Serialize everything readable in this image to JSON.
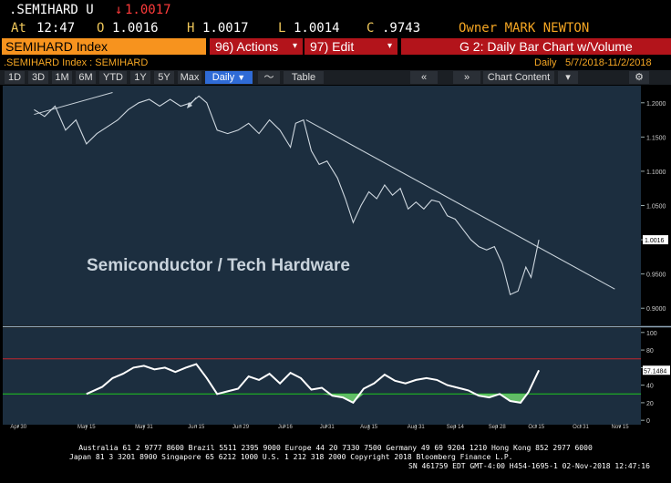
{
  "header": {
    "ticker": ".SEMIHARD U",
    "last_arrow": "↓",
    "last": "1.0017",
    "at_label": "At",
    "time": "12:47",
    "o_label": "O",
    "open": "1.0016",
    "h_label": "H",
    "high": "1.0017",
    "l_label": "L",
    "low": "1.0014",
    "c_label": "C",
    "close": ".9743",
    "owner": "Owner MARK NEWTON"
  },
  "menubar": {
    "security": "SEMIHARD Index",
    "actions": "96) Actions",
    "edit": "97) Edit",
    "chart_title": "G 2: Daily Bar Chart w/Volume"
  },
  "subheader": {
    "security_line": ".SEMIHARD Index : SEMIHARD",
    "period_label": "Daily",
    "date_range": "5/7/2018-11/2/2018"
  },
  "toolbar": {
    "ranges": [
      "1D",
      "3D",
      "1M",
      "6M",
      "YTD",
      "1Y",
      "5Y",
      "Max"
    ],
    "freq": "Daily",
    "table": "Table",
    "chart_content": "Chart Content",
    "colors": {
      "active": "#2f6bd6"
    }
  },
  "chart_data": {
    "type": "line",
    "annotation": "Semiconductor / Tech Hardware",
    "price_ylim": [
      0.875,
      1.225
    ],
    "price_ticks": [
      "1.2000",
      "1.1500",
      "1.1000",
      "1.0500",
      "1.0000",
      "0.9500",
      "0.9000"
    ],
    "price_tick_values": [
      1.2,
      1.15,
      1.1,
      1.05,
      1.0,
      0.95,
      0.9
    ],
    "last_price_label": "1.0016",
    "price_series": [
      {
        "x": 0,
        "y": 1.19
      },
      {
        "x": 4,
        "y": 1.18
      },
      {
        "x": 8,
        "y": 1.195
      },
      {
        "x": 12,
        "y": 1.16
      },
      {
        "x": 16,
        "y": 1.175
      },
      {
        "x": 20,
        "y": 1.14
      },
      {
        "x": 24,
        "y": 1.155
      },
      {
        "x": 28,
        "y": 1.165
      },
      {
        "x": 32,
        "y": 1.175
      },
      {
        "x": 36,
        "y": 1.19
      },
      {
        "x": 40,
        "y": 1.2
      },
      {
        "x": 44,
        "y": 1.205
      },
      {
        "x": 48,
        "y": 1.195
      },
      {
        "x": 52,
        "y": 1.205
      },
      {
        "x": 56,
        "y": 1.195
      },
      {
        "x": 60,
        "y": 1.2
      },
      {
        "x": 63,
        "y": 1.21
      },
      {
        "x": 66,
        "y": 1.2
      },
      {
        "x": 70,
        "y": 1.16
      },
      {
        "x": 74,
        "y": 1.155
      },
      {
        "x": 78,
        "y": 1.16
      },
      {
        "x": 82,
        "y": 1.17
      },
      {
        "x": 86,
        "y": 1.155
      },
      {
        "x": 90,
        "y": 1.175
      },
      {
        "x": 94,
        "y": 1.16
      },
      {
        "x": 98,
        "y": 1.135
      },
      {
        "x": 100,
        "y": 1.17
      },
      {
        "x": 103,
        "y": 1.175
      },
      {
        "x": 106,
        "y": 1.13
      },
      {
        "x": 109,
        "y": 1.11
      },
      {
        "x": 112,
        "y": 1.115
      },
      {
        "x": 116,
        "y": 1.09
      },
      {
        "x": 119,
        "y": 1.06
      },
      {
        "x": 122,
        "y": 1.025
      },
      {
        "x": 125,
        "y": 1.05
      },
      {
        "x": 128,
        "y": 1.07
      },
      {
        "x": 131,
        "y": 1.06
      },
      {
        "x": 134,
        "y": 1.08
      },
      {
        "x": 137,
        "y": 1.065
      },
      {
        "x": 140,
        "y": 1.075
      },
      {
        "x": 143,
        "y": 1.045
      },
      {
        "x": 146,
        "y": 1.055
      },
      {
        "x": 149,
        "y": 1.045
      },
      {
        "x": 152,
        "y": 1.058
      },
      {
        "x": 155,
        "y": 1.055
      },
      {
        "x": 158,
        "y": 1.035
      },
      {
        "x": 161,
        "y": 1.03
      },
      {
        "x": 164,
        "y": 1.015
      },
      {
        "x": 167,
        "y": 1.0
      },
      {
        "x": 170,
        "y": 0.99
      },
      {
        "x": 173,
        "y": 0.985
      },
      {
        "x": 176,
        "y": 0.99
      },
      {
        "x": 179,
        "y": 0.965
      },
      {
        "x": 182,
        "y": 0.92
      },
      {
        "x": 185,
        "y": 0.925
      },
      {
        "x": 188,
        "y": 0.96
      },
      {
        "x": 190,
        "y": 0.945
      },
      {
        "x": 193,
        "y": 1.0
      }
    ],
    "trendline": [
      {
        "x": 104,
        "y": 1.175
      },
      {
        "x": 222,
        "y": 0.928
      }
    ],
    "initial_line": [
      {
        "x": 0,
        "y": 1.183
      },
      {
        "x": 30,
        "y": 1.215
      }
    ],
    "osc_ylim": [
      -5,
      105
    ],
    "osc_ticks": [
      "100",
      "80",
      "60",
      "40",
      "20",
      "0"
    ],
    "osc_tick_values": [
      100,
      80,
      60,
      40,
      20,
      0
    ],
    "osc_upper": 70,
    "osc_lower": 30,
    "osc_last_label": "57.1484",
    "osc_series": [
      {
        "x": 20,
        "y": 30
      },
      {
        "x": 26,
        "y": 38
      },
      {
        "x": 30,
        "y": 48
      },
      {
        "x": 34,
        "y": 53
      },
      {
        "x": 38,
        "y": 60
      },
      {
        "x": 42,
        "y": 62
      },
      {
        "x": 46,
        "y": 58
      },
      {
        "x": 50,
        "y": 60
      },
      {
        "x": 54,
        "y": 55
      },
      {
        "x": 58,
        "y": 60
      },
      {
        "x": 62,
        "y": 64
      },
      {
        "x": 66,
        "y": 48
      },
      {
        "x": 70,
        "y": 30
      },
      {
        "x": 74,
        "y": 33
      },
      {
        "x": 78,
        "y": 36
      },
      {
        "x": 82,
        "y": 50
      },
      {
        "x": 86,
        "y": 46
      },
      {
        "x": 90,
        "y": 53
      },
      {
        "x": 94,
        "y": 42
      },
      {
        "x": 98,
        "y": 54
      },
      {
        "x": 102,
        "y": 48
      },
      {
        "x": 106,
        "y": 35
      },
      {
        "x": 110,
        "y": 37
      },
      {
        "x": 114,
        "y": 28
      },
      {
        "x": 118,
        "y": 26
      },
      {
        "x": 122,
        "y": 20
      },
      {
        "x": 126,
        "y": 36
      },
      {
        "x": 130,
        "y": 42
      },
      {
        "x": 134,
        "y": 52
      },
      {
        "x": 138,
        "y": 45
      },
      {
        "x": 142,
        "y": 42
      },
      {
        "x": 146,
        "y": 46
      },
      {
        "x": 150,
        "y": 48
      },
      {
        "x": 154,
        "y": 46
      },
      {
        "x": 158,
        "y": 40
      },
      {
        "x": 162,
        "y": 37
      },
      {
        "x": 166,
        "y": 34
      },
      {
        "x": 170,
        "y": 28
      },
      {
        "x": 174,
        "y": 26
      },
      {
        "x": 178,
        "y": 30
      },
      {
        "x": 182,
        "y": 22
      },
      {
        "x": 186,
        "y": 20
      },
      {
        "x": 189,
        "y": 32
      },
      {
        "x": 193,
        "y": 57
      }
    ],
    "x_ticks": [
      {
        "label": "Apr 30",
        "x": -6
      },
      {
        "label": "May 15",
        "x": 20
      },
      {
        "label": "May 31",
        "x": 42
      },
      {
        "label": "Jun 15",
        "x": 62
      },
      {
        "label": "Jun 29",
        "x": 79
      },
      {
        "label": "Jul 16",
        "x": 96
      },
      {
        "label": "Jul 31",
        "x": 112
      },
      {
        "label": "Aug 15",
        "x": 128
      },
      {
        "label": "Aug 31",
        "x": 146
      },
      {
        "label": "Sep 14",
        "x": 161
      },
      {
        "label": "Sep 28",
        "x": 177
      },
      {
        "label": "Oct 15",
        "x": 192
      },
      {
        "label": "Oct 31",
        "x": 209
      },
      {
        "label": "Nov 15",
        "x": 224
      }
    ],
    "year_label": "2018",
    "x_range": [
      -12,
      232
    ],
    "colors": {
      "bg": "#1c2e3f",
      "price": "#cfd8e0",
      "trend": "#c8d2da",
      "osc": "#ffffff",
      "upper": "#c0272d",
      "lower": "#1ec81e",
      "fill": "#6fd36f"
    }
  },
  "footer": {
    "line1": "Australia 61 2 9777 8600 Brazil 5511 2395 9000 Europe 44 20 7330 7500 Germany 49 69 9204 1210 Hong Kong 852 2977 6000",
    "line2": "Japan 81 3 3201 8900       Singapore 65 6212 1000       U.S. 1 212 318 2000               Copyright 2018 Bloomberg Finance L.P.",
    "line3": "SN 461759 EDT  GMT-4:00 H454-1695-1 02-Nov-2018 12:47:16"
  }
}
